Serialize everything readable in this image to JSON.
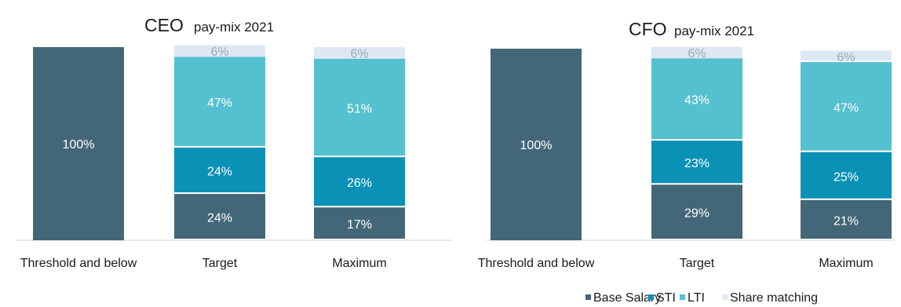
{
  "chart_data": [
    {
      "type": "bar",
      "stacked": true,
      "title_main": "CEO",
      "title_sub": "pay-mix 2021",
      "categories": [
        "Threshold and below",
        "Target",
        "Maximum"
      ],
      "series": [
        {
          "name": "Base Salary",
          "color": "#436778",
          "values": [
            100,
            24,
            17
          ],
          "labels": [
            "100%",
            "24%",
            "17%"
          ],
          "label_color": "#ffffff"
        },
        {
          "name": "STI",
          "color": "#0a91b5",
          "values": [
            0,
            24,
            26
          ],
          "labels": [
            "",
            "24%",
            "26%"
          ],
          "label_color": "#ffffff"
        },
        {
          "name": "LTI",
          "color": "#55c0cf",
          "values": [
            0,
            47,
            51
          ],
          "labels": [
            "",
            "47%",
            "51%"
          ],
          "label_color": "#ffffff"
        },
        {
          "name": "Share matching",
          "color": "#dde8f4",
          "values": [
            0,
            6,
            6
          ],
          "labels": [
            "",
            "6%",
            "6%"
          ],
          "label_color": "#9aaab8"
        }
      ],
      "ylim": [
        0,
        100
      ],
      "grid": false
    },
    {
      "type": "bar",
      "stacked": true,
      "title_main": "CFO",
      "title_sub": "pay-mix 2021",
      "categories": [
        "Threshold and below",
        "Target",
        "Maximum"
      ],
      "series": [
        {
          "name": "Base Salary",
          "color": "#436778",
          "values": [
            100,
            29,
            21
          ],
          "labels": [
            "100%",
            "29%",
            "21%"
          ],
          "label_color": "#ffffff"
        },
        {
          "name": "STI",
          "color": "#0a91b5",
          "values": [
            0,
            23,
            25
          ],
          "labels": [
            "",
            "23%",
            "25%"
          ],
          "label_color": "#ffffff"
        },
        {
          "name": "LTI",
          "color": "#55c0cf",
          "values": [
            0,
            43,
            47
          ],
          "labels": [
            "",
            "43%",
            "47%"
          ],
          "label_color": "#ffffff"
        },
        {
          "name": "Share matching",
          "color": "#dde8f4",
          "values": [
            0,
            6,
            6
          ],
          "labels": [
            "",
            "6%",
            "6%"
          ],
          "label_color": "#9aaab8"
        }
      ],
      "ylim": [
        0,
        100
      ],
      "grid": false
    }
  ],
  "legend": {
    "placement": "bottom-right",
    "items": [
      {
        "name": "Base Salary",
        "color": "#436778"
      },
      {
        "name": "STI",
        "color": "#0a91b5"
      },
      {
        "name": "LTI",
        "color": "#55c0cf"
      },
      {
        "name": "Share matching",
        "color": "#dde8f4"
      }
    ]
  }
}
